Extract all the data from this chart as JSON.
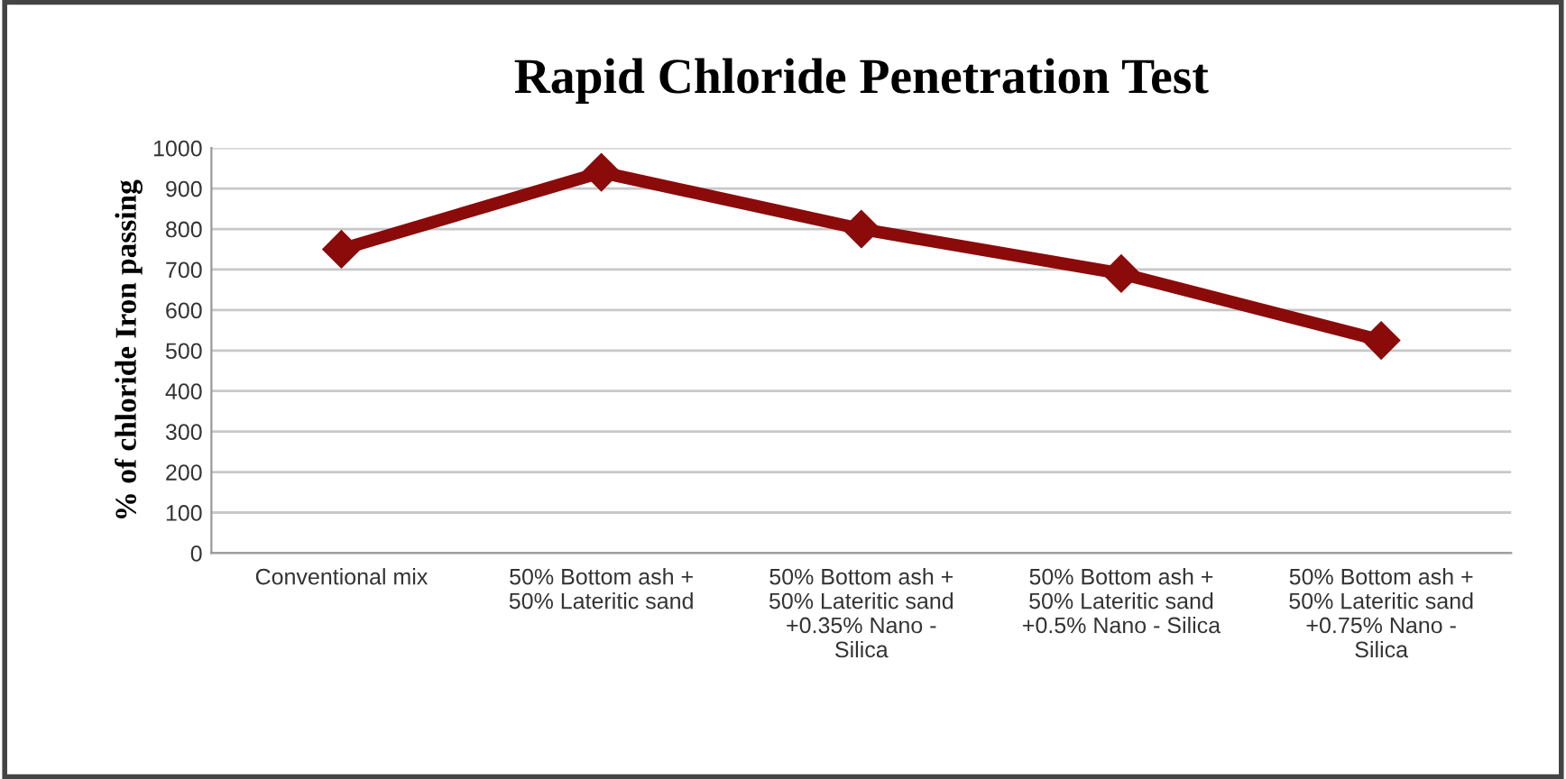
{
  "chart_data": {
    "type": "line",
    "title": "Rapid Chloride Penetration Test",
    "ylabel": "% of chloride Iron passing",
    "categories": [
      "Conventional mix",
      "50% Bottom ash +\n50% Lateritic sand",
      "50% Bottom ash +\n50% Lateritic sand\n+0.35% Nano -\nSilica",
      "50% Bottom ash +\n50% Lateritic sand\n+0.5% Nano - Silica",
      "50% Bottom ash +\n50% Lateritic sand\n+0.75% Nano -\nSilica"
    ],
    "series": [
      {
        "color": "#8b0a0a",
        "values": [
          750,
          940,
          800,
          690,
          525
        ]
      }
    ],
    "ylim": [
      0,
      1000
    ],
    "yticks": [
      0,
      100,
      200,
      300,
      400,
      500,
      600,
      700,
      800,
      900,
      1000
    ],
    "grid": "y",
    "legend": false,
    "marker": "diamond",
    "line_style": "solid"
  }
}
